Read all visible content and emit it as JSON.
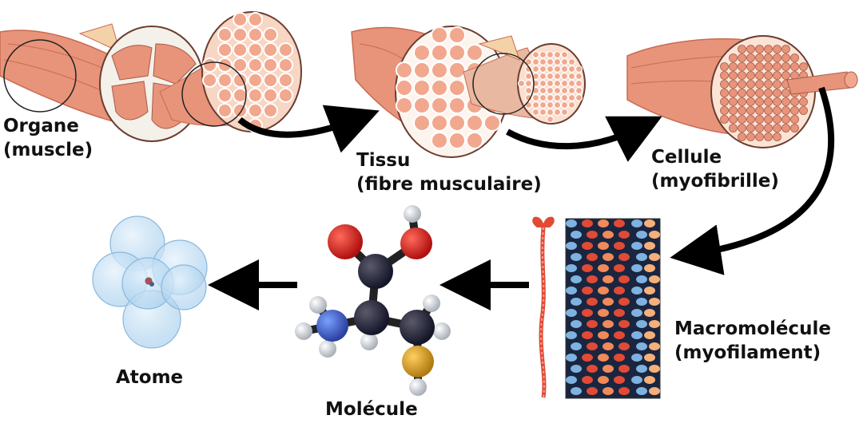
{
  "diagram": {
    "levels": [
      {
        "id": "organe",
        "name": "Organe",
        "detail": "(muscle)"
      },
      {
        "id": "tissu",
        "name": "Tissu",
        "detail": "(fibre musculaire)"
      },
      {
        "id": "cellule",
        "name": "Cellule",
        "detail": "(myofibrille)"
      },
      {
        "id": "macromolecule",
        "name": "Macromolécule",
        "detail": "(myofilament)"
      },
      {
        "id": "molecule",
        "name": "Molécule"
      },
      {
        "id": "atome",
        "name": "Atome"
      }
    ],
    "colors": {
      "muscle": "#e8947a",
      "muscle_dark": "#c96a52",
      "fascicle": "#f2b8a0",
      "arrow": "#000000",
      "filament_blue": "#7fb2e0",
      "filament_red": "#e14a35",
      "atom_shell": "#bcdcf2"
    }
  }
}
